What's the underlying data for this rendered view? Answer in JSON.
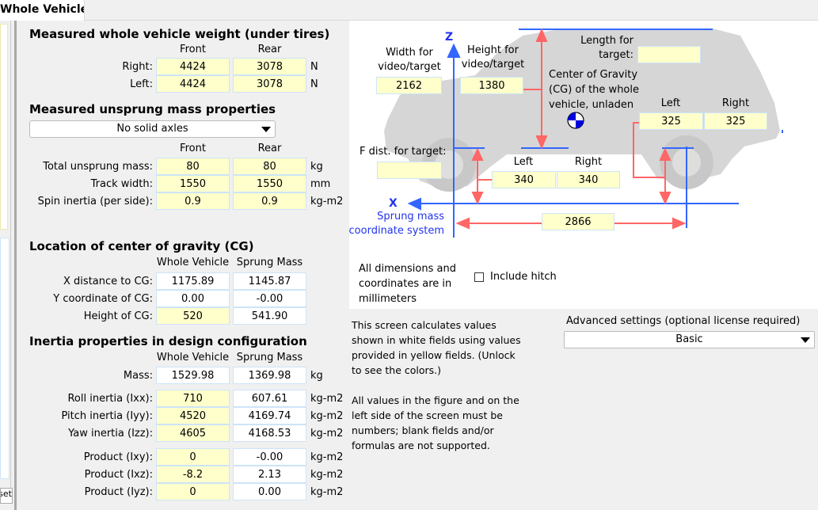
{
  "tab": {
    "label": "Whole Vehicle)"
  },
  "side": {
    "reset_label": "Reset"
  },
  "weight": {
    "title": "Measured whole vehicle weight (under tires)",
    "col_front": "Front",
    "col_rear": "Rear",
    "rows": [
      {
        "label": "Right:",
        "front": "4424",
        "rear": "3078",
        "unit": "N"
      },
      {
        "label": "Left:",
        "front": "4424",
        "rear": "3078",
        "unit": "N"
      }
    ]
  },
  "unsprung": {
    "title": "Measured unsprung mass properties",
    "axle_select": "No solid axles",
    "col_front": "Front",
    "col_rear": "Rear",
    "rows": [
      {
        "label": "Total unsprung mass:",
        "front": "80",
        "rear": "80",
        "unit": "kg"
      },
      {
        "label": "Track width:",
        "front": "1550",
        "rear": "1550",
        "unit": "mm"
      },
      {
        "label": "Spin inertia (per side):",
        "front": "0.9",
        "rear": "0.9",
        "unit": "kg-m2"
      }
    ]
  },
  "cg": {
    "title": "Location of center of gravity (CG)",
    "col_whole": "Whole Vehicle",
    "col_sprung": "Sprung Mass",
    "rows": [
      {
        "label": "X distance  to CG:",
        "whole": "1175.89",
        "sprung": "1145.87"
      },
      {
        "label": "Y coordinate of CG:",
        "whole": "0.00",
        "sprung": "-0.00"
      },
      {
        "label": "Height of CG:",
        "whole": "520",
        "sprung": "541.90"
      }
    ]
  },
  "inertia": {
    "title": "Inertia properties in design configuration",
    "col_whole": "Whole Vehicle",
    "col_sprung": "Sprung Mass",
    "rows": [
      {
        "label": "Mass:",
        "whole": "1529.98",
        "sprung": "1369.98",
        "unit": "kg"
      },
      {
        "label": "Roll inertia (Ixx):",
        "whole": "710",
        "sprung": "607.61",
        "unit": "kg-m2"
      },
      {
        "label": "Pitch inertia (Iyy):",
        "whole": "4520",
        "sprung": "4169.74",
        "unit": "kg-m2"
      },
      {
        "label": "Yaw inertia (Izz):",
        "whole": "4605",
        "sprung": "4168.53",
        "unit": "kg-m2"
      },
      {
        "label": "Product (Ixy):",
        "whole": "0",
        "sprung": "-0.00",
        "unit": "kg-m2"
      },
      {
        "label": "Product (Ixz):",
        "whole": "-8.2",
        "sprung": "2.13",
        "unit": "kg-m2"
      },
      {
        "label": "Product (Iyz):",
        "whole": "0",
        "sprung": "0.00",
        "unit": "kg-m2"
      }
    ]
  },
  "figure": {
    "z_label": "Z",
    "x_label": "X",
    "coord_label_1": "Sprung mass",
    "coord_label_2": "coordinate system",
    "width_label_1": "Width for",
    "width_label_2": "video/target",
    "width_value": "2162",
    "height_label_1": "Height for",
    "height_label_2": "video/target",
    "height_value": "1380",
    "length_label_1": "Length for",
    "length_label_2": "target:",
    "length_value": "",
    "cg_label_1": "Center of Gravity",
    "cg_label_2": "(CG) of the whole",
    "cg_label_3": "vehicle, unladen",
    "rear_left_label": "Left",
    "rear_right_label": "Right",
    "rear_left": "325",
    "rear_right": "325",
    "fdist_label": "F dist. for target:",
    "fdist_value": "",
    "front_left_label": "Left",
    "front_right_label": "Right",
    "front_left": "340",
    "front_right": "340",
    "wheelbase": "2866",
    "colors": {
      "axis": "#3366ff",
      "dimension": "#ff6666",
      "car": "#d6d6d6"
    }
  },
  "dims_note": {
    "line1": "All dimensions and",
    "line2": "coordinates are in",
    "line3": "millimeters"
  },
  "hitch": {
    "label": "Include hitch",
    "checked": false
  },
  "info": {
    "p1": [
      "This screen calculates values",
      "shown in white fields using values",
      "provided in yellow fields. (Unlock",
      "to see the colors.)"
    ],
    "p2": [
      "All values in the figure and on the",
      "left side of the screen must be",
      "numbers; blank fields and/or",
      "formulas are not supported."
    ]
  },
  "advanced": {
    "label": "Advanced settings (optional license required)",
    "value": "Basic"
  }
}
